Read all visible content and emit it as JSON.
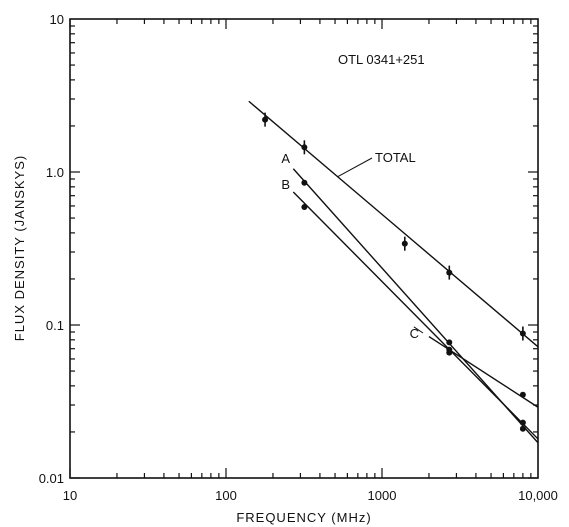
{
  "chart_data": {
    "type": "scatter",
    "title": "OTL 0341+251",
    "xlabel": "FREQUENCY (MHz)",
    "ylabel": "FLUX DENSITY (JANSKYS)",
    "xscale": "log",
    "yscale": "log",
    "xlim": [
      10,
      10000
    ],
    "ylim": [
      0.01,
      10
    ],
    "x_tick_labels": [
      "10",
      "100",
      "1000",
      "10,000"
    ],
    "y_tick_labels": [
      "0.01",
      "0.1",
      "1.0",
      "10"
    ],
    "grid": false,
    "series": [
      {
        "name": "TOTAL",
        "points": [
          {
            "x": 178,
            "y": 2.2
          },
          {
            "x": 318,
            "y": 1.45
          },
          {
            "x": 1400,
            "y": 0.34
          },
          {
            "x": 2700,
            "y": 0.22
          },
          {
            "x": 8000,
            "y": 0.088
          }
        ],
        "fit": [
          {
            "x": 140,
            "y": 2.9
          },
          {
            "x": 10000,
            "y": 0.072
          }
        ]
      },
      {
        "name": "A",
        "points": [
          {
            "x": 318,
            "y": 0.85
          },
          {
            "x": 2700,
            "y": 0.077
          },
          {
            "x": 8000,
            "y": 0.023
          }
        ],
        "fit": [
          {
            "x": 270,
            "y": 1.05
          },
          {
            "x": 10000,
            "y": 0.017
          }
        ]
      },
      {
        "name": "B",
        "points": [
          {
            "x": 318,
            "y": 0.59
          },
          {
            "x": 2700,
            "y": 0.066
          },
          {
            "x": 8000,
            "y": 0.021
          }
        ],
        "fit": [
          {
            "x": 270,
            "y": 0.74
          },
          {
            "x": 10000,
            "y": 0.018
          }
        ]
      },
      {
        "name": "C",
        "points": [
          {
            "x": 2700,
            "y": 0.069
          },
          {
            "x": 8000,
            "y": 0.035
          }
        ],
        "fit": [
          {
            "x": 2000,
            "y": 0.084
          },
          {
            "x": 10000,
            "y": 0.029
          }
        ]
      }
    ],
    "annotations": [
      {
        "text": "TOTAL",
        "series": "TOTAL"
      },
      {
        "text": "A",
        "series": "A"
      },
      {
        "text": "B",
        "series": "B"
      },
      {
        "text": "C",
        "series": "C"
      }
    ]
  }
}
